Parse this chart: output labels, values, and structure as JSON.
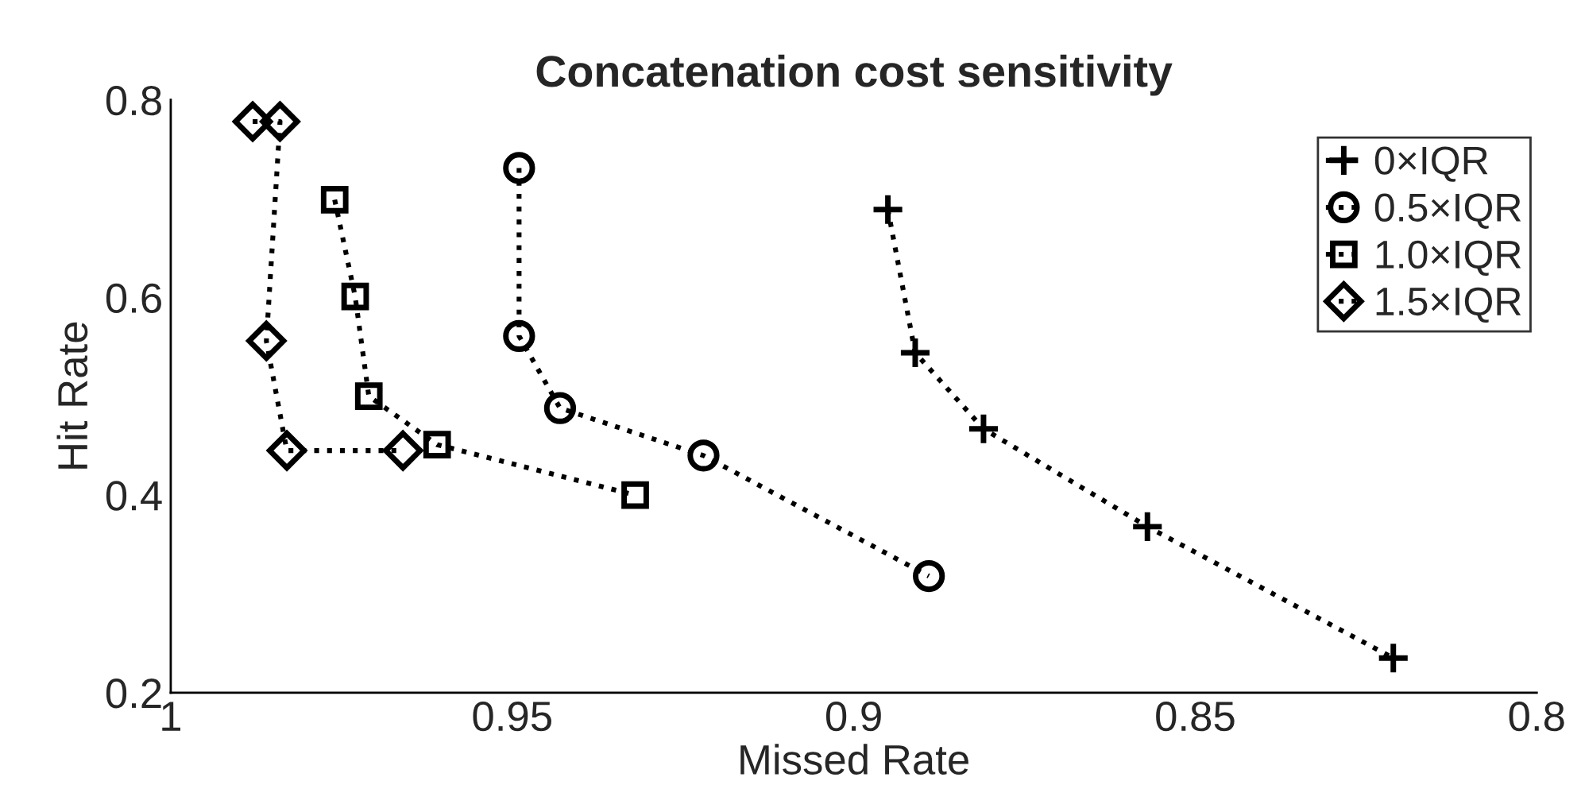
{
  "chart_data": {
    "type": "line",
    "title": "Concatenation cost sensitivity",
    "xlabel": "Missed Rate",
    "ylabel": "Hit Rate",
    "xlim": [
      1,
      0.8
    ],
    "xticks": [
      1,
      0.95,
      0.9,
      0.85,
      0.8
    ],
    "ylim": [
      0.2,
      0.8
    ],
    "yticks": [
      0.2,
      0.4,
      0.6,
      0.8
    ],
    "grid": false,
    "legend": "top right",
    "line_style": "dotted",
    "series": [
      {
        "name": "0×IQR",
        "color": "#000000",
        "marker": "cross",
        "x": [
          0.895,
          0.891,
          0.881,
          0.857,
          0.821
        ],
        "values": [
          0.689,
          0.544,
          0.467,
          0.368,
          0.235
        ]
      },
      {
        "name": "0.5×IQR",
        "color": "#000000",
        "marker": "circle",
        "x": [
          0.949,
          0.949,
          0.943,
          0.922,
          0.889
        ],
        "values": [
          0.731,
          0.561,
          0.488,
          0.44,
          0.318
        ]
      },
      {
        "name": "1.0×IQR",
        "color": "#000000",
        "marker": "square",
        "x": [
          0.976,
          0.973,
          0.971,
          0.961,
          0.932
        ],
        "values": [
          0.699,
          0.601,
          0.5,
          0.451,
          0.4
        ]
      },
      {
        "name": "1.5×IQR",
        "color": "#000000",
        "marker": "diamond",
        "x": [
          0.988,
          0.984,
          0.986,
          0.983,
          0.966
        ],
        "values": [
          0.778,
          0.778,
          0.556,
          0.445,
          0.445
        ]
      }
    ]
  }
}
